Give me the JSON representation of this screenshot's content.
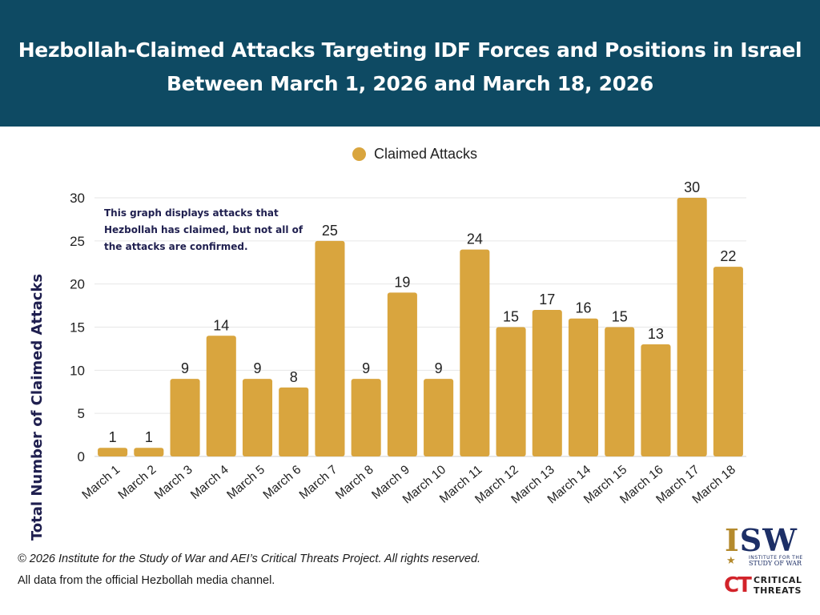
{
  "header": {
    "title_line1": "Hezbollah-Claimed Attacks Targeting IDF Forces and Positions in Israel",
    "title_line2": "Between March 1, 2026 and March 18, 2026"
  },
  "note": "This graph displays attacks that Hezbollah has claimed, but not all of the attacks are confirmed.",
  "footer": {
    "copyright": "© 2026 Institute for the Study of War and AEI’s Critical Threats Project. All rights reserved.",
    "source": "All data from the official Hezbollah media channel."
  },
  "logos": {
    "isw_mark_1": "I",
    "isw_mark_2": "SW",
    "isw_sub1": "INSTITUTE FOR THE",
    "isw_sub2": "STUDY OF WAR",
    "ct_mark": "CT",
    "ct_line1": "CRITICAL",
    "ct_line2": "THREATS"
  },
  "colors": {
    "header_bg": "#0e4a63",
    "bar": "#d9a53e",
    "ylabel": "#1f1f4f"
  },
  "chart_data": {
    "type": "bar",
    "title": "Hezbollah-Claimed Attacks Targeting IDF Forces and Positions in Israel Between March 1, 2026 and March 18, 2026",
    "xlabel": "",
    "ylabel": "Total Number of Claimed Attacks",
    "ylim": [
      0,
      30
    ],
    "yticks": [
      0,
      5,
      10,
      15,
      20,
      25,
      30
    ],
    "grid": true,
    "legend_position": "top-center",
    "categories": [
      "March 1",
      "March 2",
      "March 3",
      "March 4",
      "March 5",
      "March 6",
      "March 7",
      "March 8",
      "March 9",
      "March 10",
      "March 11",
      "March 12",
      "March 13",
      "March 14",
      "March 15",
      "March 16",
      "March 17",
      "March 18"
    ],
    "series": [
      {
        "name": "Claimed Attacks",
        "values": [
          1,
          1,
          9,
          14,
          9,
          8,
          25,
          9,
          19,
          9,
          24,
          15,
          17,
          16,
          15,
          13,
          30,
          22
        ]
      }
    ]
  }
}
